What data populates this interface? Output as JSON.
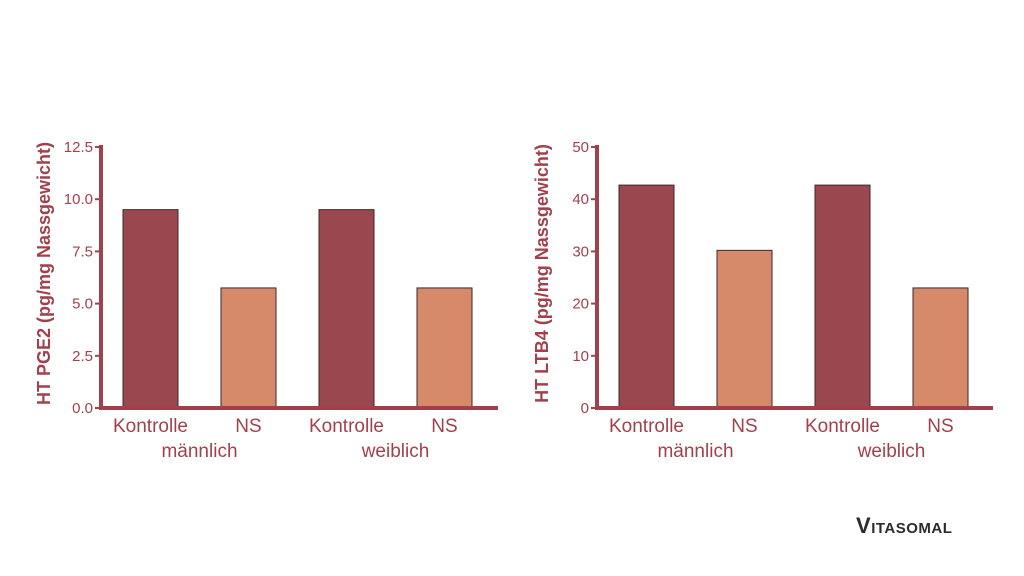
{
  "colors": {
    "axis": "#a2414c",
    "control_bar": "#9b4750",
    "ns_bar": "#d68a6a",
    "bar_stroke": "#3a2a2a",
    "text": "#a2414c"
  },
  "brand": {
    "first": "V",
    "rest": "ITASOMAL"
  },
  "chart_data": [
    {
      "type": "bar",
      "title": "",
      "xlabel": "",
      "ylabel": "HT PGE2 (pg/mg Nassgewicht)",
      "ylim": [
        0,
        12.5
      ],
      "yticks": [
        0,
        2.5,
        5,
        7.5,
        10,
        12.5
      ],
      "ytick_labels": [
        "0.0",
        "2.5",
        "5.0",
        "7.5",
        "10.0",
        "12.5"
      ],
      "categories": [
        "Kontrolle",
        "NS",
        "Kontrolle",
        "NS"
      ],
      "groups": [
        "männlich",
        "weiblich"
      ],
      "values": [
        9.5,
        5.75,
        9.5,
        5.75
      ],
      "series_kind": [
        "control",
        "ns",
        "control",
        "ns"
      ],
      "grid": false
    },
    {
      "type": "bar",
      "title": "",
      "xlabel": "",
      "ylabel": "HT LTB4 (pg/mg Nassgewicht)",
      "ylim": [
        0,
        50
      ],
      "yticks": [
        0,
        10,
        20,
        30,
        40,
        50
      ],
      "ytick_labels": [
        "0",
        "10",
        "20",
        "30",
        "40",
        "50"
      ],
      "categories": [
        "Kontrolle",
        "NS",
        "Kontrolle",
        "NS"
      ],
      "groups": [
        "männlich",
        "weiblich"
      ],
      "values": [
        42.7,
        30.2,
        42.7,
        23.0
      ],
      "series_kind": [
        "control",
        "ns",
        "control",
        "ns"
      ],
      "grid": false
    }
  ]
}
